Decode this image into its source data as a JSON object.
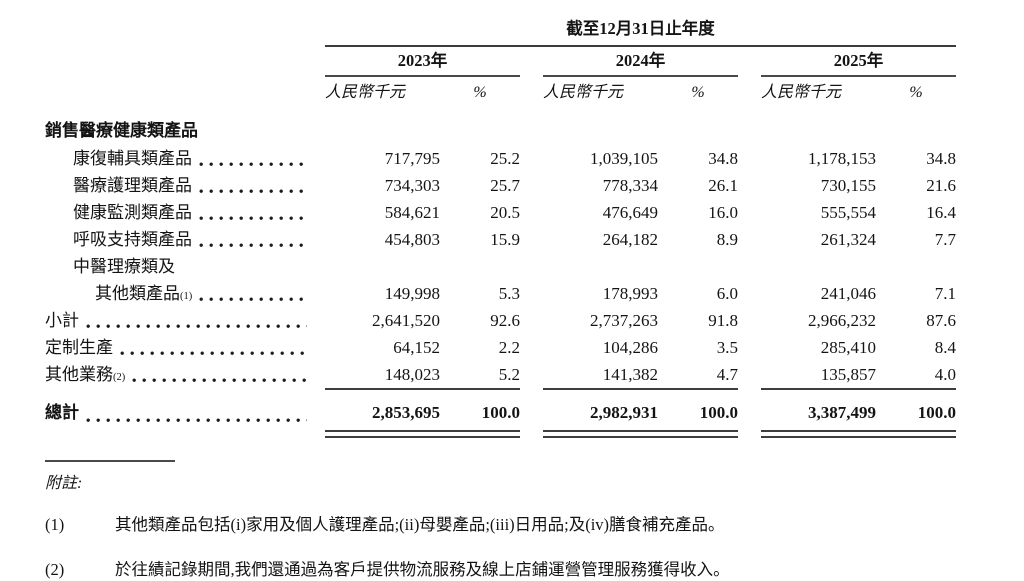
{
  "table": {
    "period_header": "截至12月31日止年度",
    "years": [
      "2023年",
      "2024年",
      "2025年"
    ],
    "columns": {
      "unit_label": "人民幣千元",
      "percent_label": "%"
    },
    "rows": [
      {
        "type": "section",
        "label": "銷售醫療健康類產品"
      },
      {
        "type": "data",
        "label": "康復輔具類產品",
        "indent": 1,
        "values": [
          "717,795",
          "25.2",
          "1,039,105",
          "34.8",
          "1,178,153",
          "34.8"
        ]
      },
      {
        "type": "data",
        "label": "醫療護理類產品",
        "indent": 1,
        "values": [
          "734,303",
          "25.7",
          "778,334",
          "26.1",
          "730,155",
          "21.6"
        ]
      },
      {
        "type": "data",
        "label": "健康監測類產品",
        "indent": 1,
        "values": [
          "584,621",
          "20.5",
          "476,649",
          "16.0",
          "555,554",
          "16.4"
        ]
      },
      {
        "type": "data",
        "label": "呼吸支持類產品",
        "indent": 1,
        "values": [
          "454,803",
          "15.9",
          "264,182",
          "8.9",
          "261,324",
          "7.7"
        ]
      },
      {
        "type": "labelonly",
        "label": "中醫理療類及",
        "indent": 1
      },
      {
        "type": "data",
        "label": "其他類產品",
        "sup": "(1)",
        "indent": 2,
        "values": [
          "149,998",
          "5.3",
          "178,993",
          "6.0",
          "241,046",
          "7.1"
        ]
      },
      {
        "type": "data",
        "label": "小計",
        "indent": 0,
        "values": [
          "2,641,520",
          "92.6",
          "2,737,263",
          "91.8",
          "2,966,232",
          "87.6"
        ]
      },
      {
        "type": "data",
        "label": "定制生產",
        "indent": 0,
        "values": [
          "64,152",
          "2.2",
          "104,286",
          "3.5",
          "285,410",
          "8.4"
        ]
      },
      {
        "type": "data",
        "label": "其他業務",
        "sup": "(2)",
        "indent": 0,
        "values": [
          "148,023",
          "5.2",
          "141,382",
          "4.7",
          "135,857",
          "4.0"
        ]
      },
      {
        "type": "rule"
      },
      {
        "type": "data",
        "label": "總計",
        "indent": 0,
        "bold": true,
        "values": [
          "2,853,695",
          "100.0",
          "2,982,931",
          "100.0",
          "3,387,499",
          "100.0"
        ]
      },
      {
        "type": "dblrule"
      }
    ]
  },
  "footnotes": {
    "label": "附註:",
    "items": [
      {
        "num": "(1)",
        "text": "其他類產品包括(i)家用及個人護理產品;(ii)母嬰產品;(iii)日用品;及(iv)膳食補充產品。"
      },
      {
        "num": "(2)",
        "text": "於往績記錄期間,我們還通過為客戶提供物流服務及線上店鋪運營管理服務獲得收入。"
      }
    ]
  }
}
